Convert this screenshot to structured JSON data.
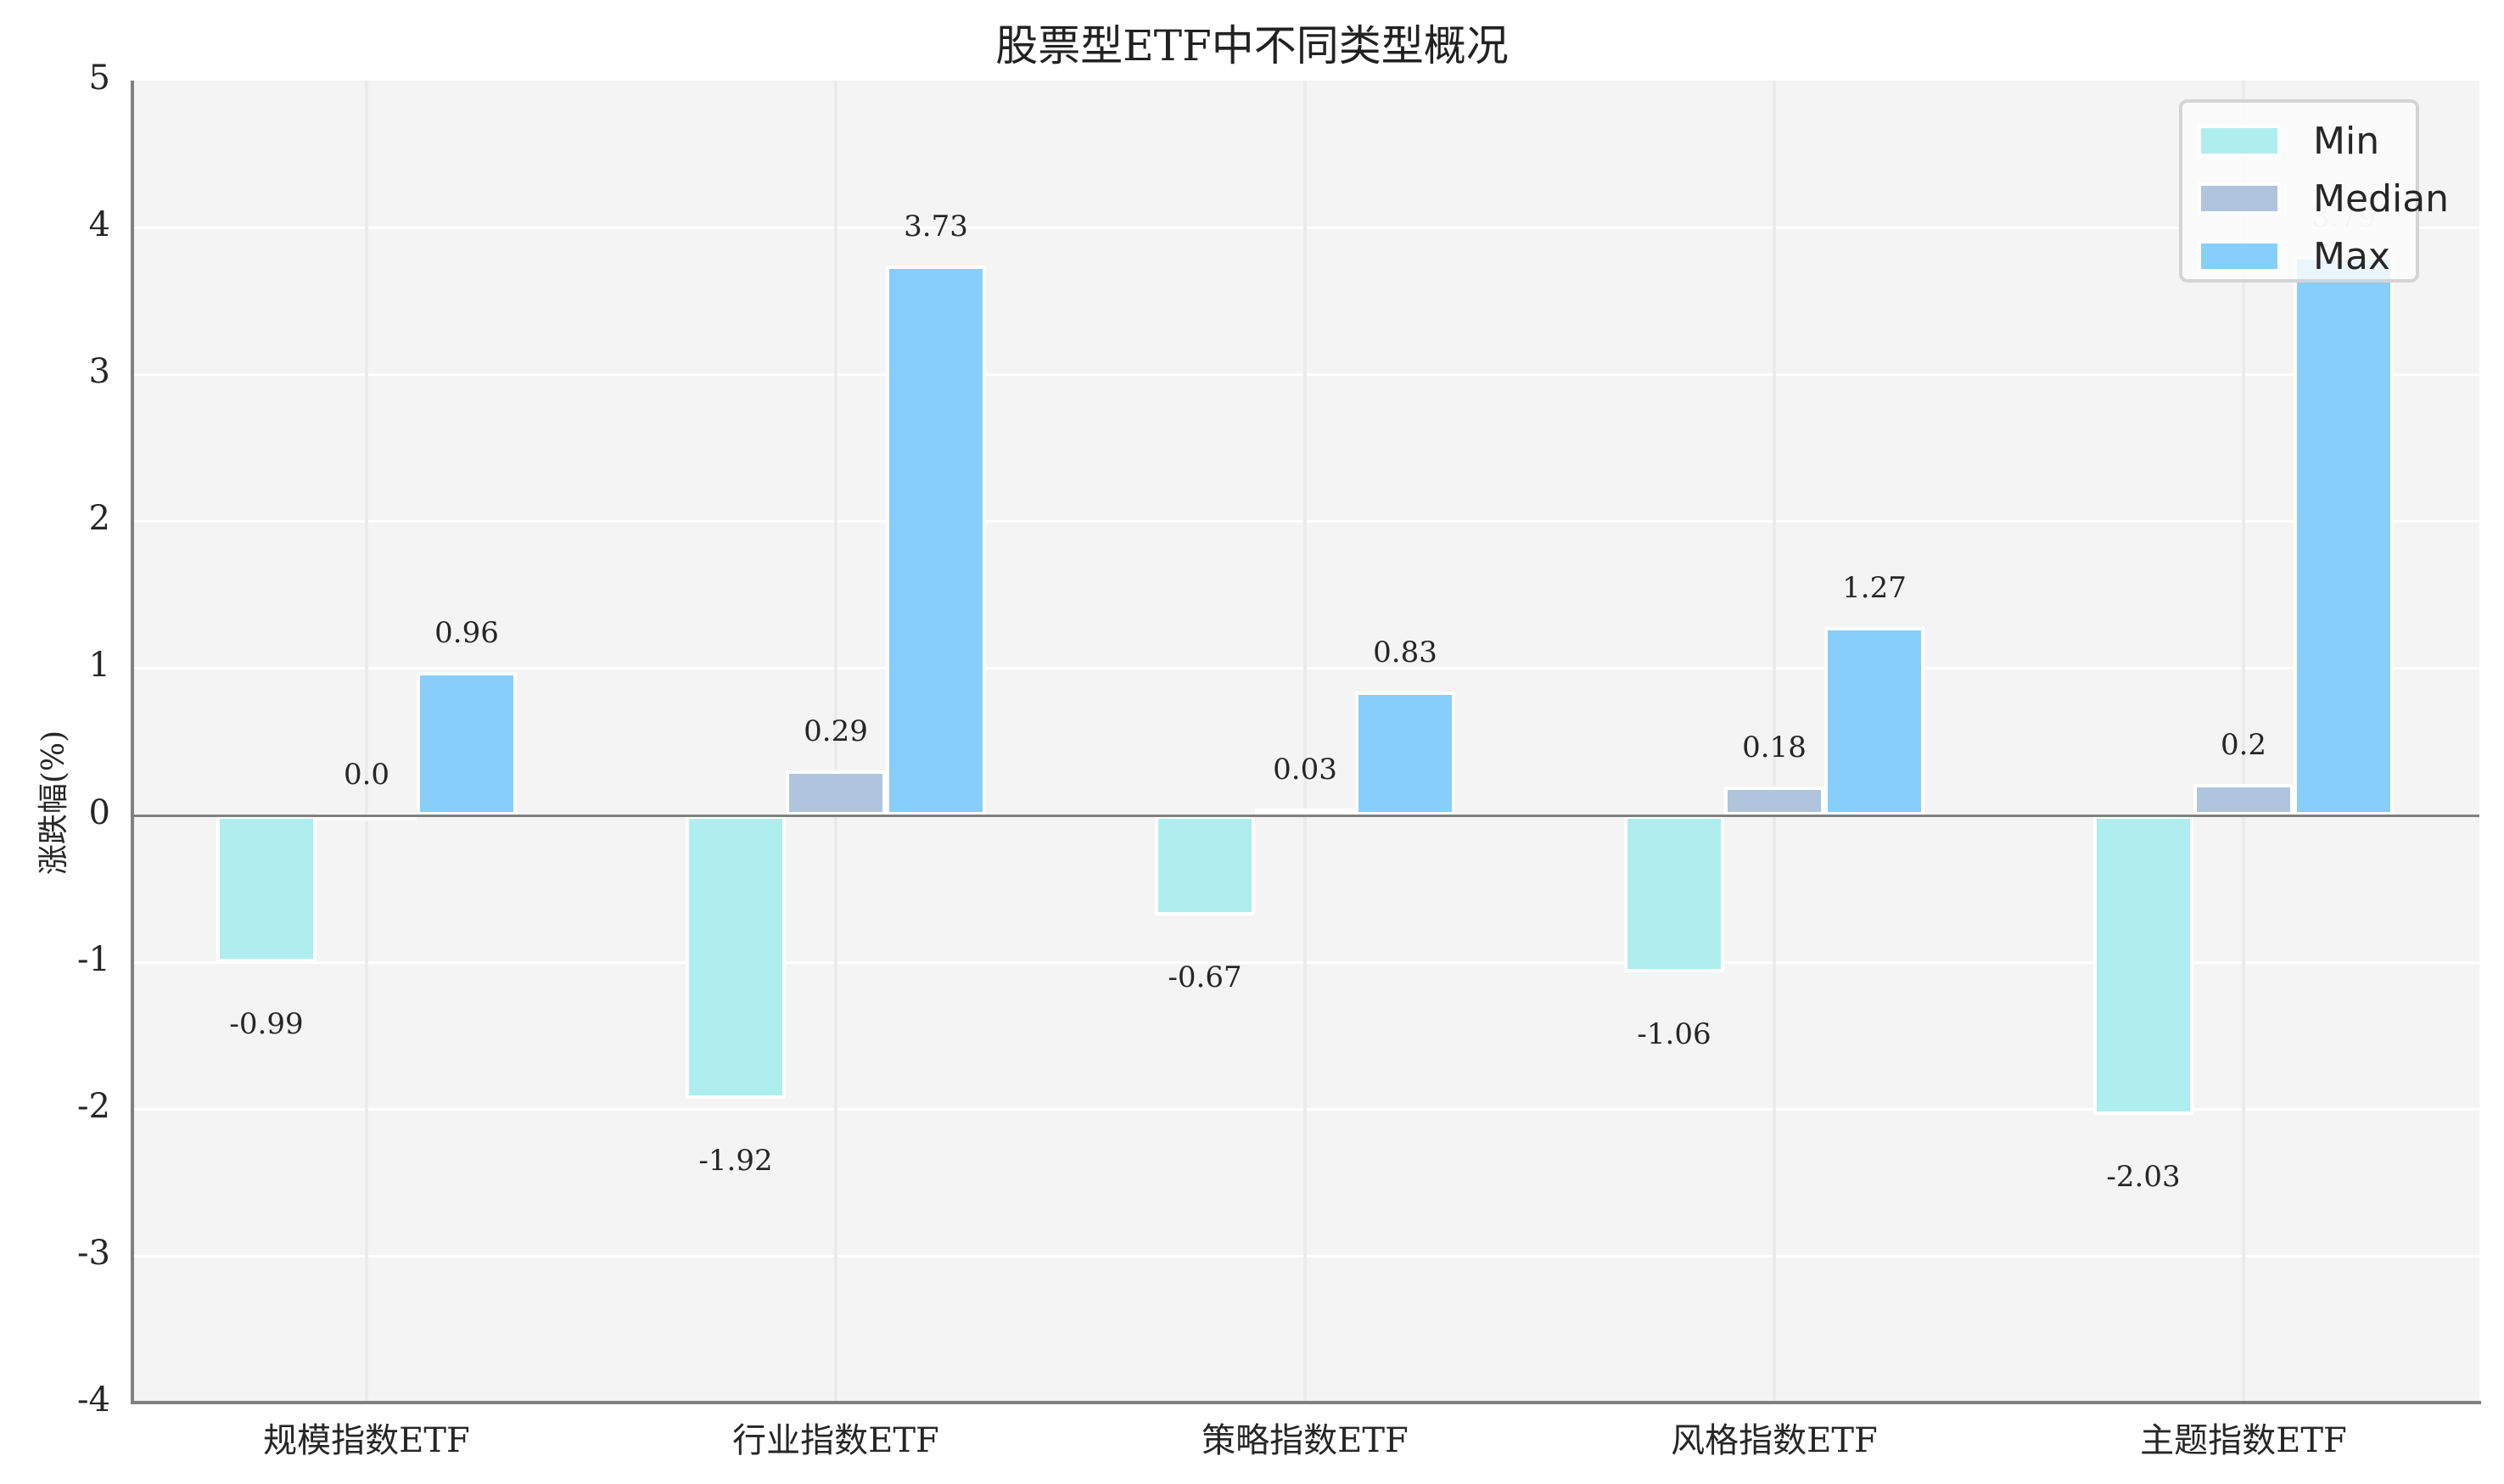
{
  "chart_data": {
    "type": "bar",
    "title": "股票型ETF中不同类型概况",
    "xlabel": "",
    "ylabel": "涨跌幅(%)",
    "ylim": [
      -4,
      5
    ],
    "yticks": [
      "5",
      "4",
      "3",
      "2",
      "1",
      "0",
      "-1",
      "-2",
      "-3",
      "-4"
    ],
    "categories": [
      "规模指数ETF",
      "行业指数ETF",
      "策略指数ETF",
      "风格指数ETF",
      "主题指数ETF"
    ],
    "series": [
      {
        "name": "Min",
        "color": "#afeeee",
        "values": [
          -0.99,
          -1.92,
          -0.67,
          -1.06,
          -2.03
        ],
        "labels": [
          "-0.99",
          "-1.92",
          "-0.67",
          "-1.06",
          "-2.03"
        ]
      },
      {
        "name": "Median",
        "color": "#b0c4de",
        "values": [
          0.0,
          0.29,
          0.03,
          0.18,
          0.2
        ],
        "labels": [
          "0.0",
          "0.29",
          "0.03",
          "0.18",
          "0.2"
        ]
      },
      {
        "name": "Max",
        "color": "#87cefa",
        "values": [
          0.96,
          3.73,
          0.83,
          1.27,
          3.79
        ],
        "labels": [
          "0.96",
          "3.73",
          "0.83",
          "1.27",
          "3.79"
        ]
      }
    ],
    "legend": {
      "position": "upper right",
      "entries": [
        "Min",
        "Median",
        "Max"
      ]
    },
    "grid": true,
    "background": "#f4f4f4"
  }
}
